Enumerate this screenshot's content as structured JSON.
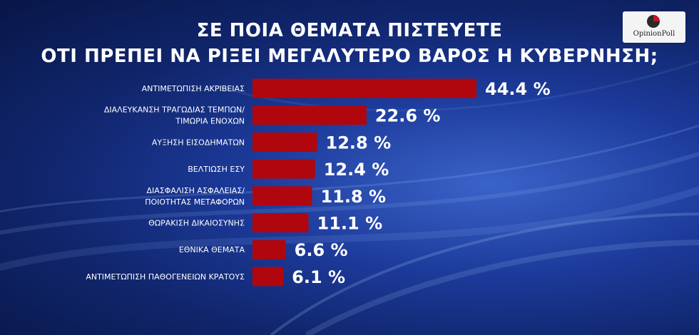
{
  "title_line1": "ΣΕ ΠΟΙΑ ΘΕΜΑΤΑ ΠΙΣΤΕΥΕΤΕ",
  "title_line2": "ΟΤΙ ΠΡΕΠΕΙ ΝΑ ΡΙΞΕΙ ΜΕΓΑΛΥΤΕΡΟ ΒΑΡΟΣ Η ΚΥΒΕΡΝΗΣΗ;",
  "logo_text": "OpinionPoll",
  "colors": {
    "bar": "#b0070f",
    "text": "#ffffff"
  },
  "chart_data": {
    "type": "bar",
    "orientation": "horizontal",
    "categories": [
      [
        "ΑΝΤΙΜΕΤΩΠΙΣΗ ΑΚΡΙΒΕΙΑΣ"
      ],
      [
        "ΔΙΑΛΕΥΚΑΝΣΗ ΤΡΑΓΩΔΙΑΣ ΤΕΜΠΩΝ/",
        "ΤΙΜΩΡΙΑ ΕΝΟΧΩΝ"
      ],
      [
        "ΑΥΞΗΣΗ ΕΙΣΟΔΗΜΑΤΩΝ"
      ],
      [
        "ΒΕΛΤΙΩΣΗ ΕΣΥ"
      ],
      [
        "ΔΙΑΣΦΑΛΙΣΗ ΑΣΦΑΛΕΙΑΣ/",
        "ΠΟΙΟΤΗΤΑΣ ΜΕΤΑΦΟΡΩΝ"
      ],
      [
        "ΘΩΡΑΚΙΣΗ ΔΙΚΑΙΟΣΥΝΗΣ"
      ],
      [
        "ΕΘΝΙΚΑ ΘΕΜΑΤΑ"
      ],
      [
        "ΑΝΤΙΜΕΤΩΠΙΣΗ ΠΑΘΟΓΕΝΕΙΩΝ ΚΡΑΤΟΥΣ"
      ]
    ],
    "values": [
      44.4,
      22.6,
      12.8,
      12.4,
      11.8,
      11.1,
      6.6,
      6.1
    ],
    "value_labels": [
      "44.4 %",
      "22.6 %",
      "12.8 %",
      "12.4 %",
      "11.8 %",
      "11.1 %",
      "6.6 %",
      "6.1 %"
    ]
  }
}
